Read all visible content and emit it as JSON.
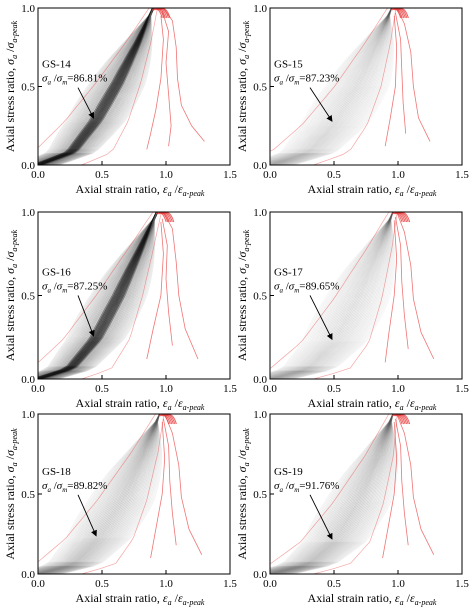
{
  "figure": {
    "xlabel_main": "Axial strain ratio, ",
    "xlabel_sym": "ε",
    "xlabel_sub1": "a",
    "xlabel_mid": " /",
    "xlabel_sym2": "ε",
    "xlabel_sub2": "a-peak",
    "ylabel_main": "Axial stress ratio, ",
    "ylabel_sym": "σ",
    "ylabel_sub1": "a",
    "ylabel_mid": " /",
    "ylabel_sym2": "σ",
    "ylabel_sub2": "a-peak",
    "ratio_sym1": "σ",
    "ratio_sub1": "a",
    "ratio_mid": " /",
    "ratio_sym2": "σ",
    "ratio_sub2": "m"
  },
  "colors": {
    "red_curves": "#e83a3a",
    "gray_band": "#5a5a5a",
    "dark_band": "#141414"
  },
  "chart_data": [
    {
      "type": "line",
      "panel": "GS-14",
      "label": "GS-14",
      "ratio_value": "=86.81%",
      "xlim": [
        0.0,
        1.5
      ],
      "ylim": [
        0.0,
        1.0
      ],
      "xticks": [
        "0.0",
        "0.5",
        "1.0",
        "1.5"
      ],
      "yticks": [
        "0.0",
        "0.5",
        "1.0"
      ],
      "band_center": [
        [
          0.0,
          0.0
        ],
        [
          0.26,
          0.08
        ],
        [
          0.45,
          0.28
        ],
        [
          0.62,
          0.52
        ],
        [
          0.78,
          0.78
        ],
        [
          0.9,
          1.0
        ]
      ],
      "band_intensity": "dark",
      "arrow_to": [
        0.45,
        0.28
      ],
      "post_peak_curves": [
        [
          [
            0.98,
            1.0
          ],
          [
            1.05,
            0.92
          ],
          [
            1.08,
            0.75
          ],
          [
            1.09,
            0.55
          ],
          [
            1.12,
            0.38
          ],
          [
            1.2,
            0.25
          ],
          [
            1.3,
            0.15
          ]
        ],
        [
          [
            0.97,
            0.98
          ],
          [
            1.02,
            0.85
          ],
          [
            1.0,
            0.65
          ],
          [
            1.02,
            0.45
          ],
          [
            1.04,
            0.25
          ],
          [
            1.02,
            0.12
          ]
        ],
        [
          [
            0.96,
            0.95
          ],
          [
            0.98,
            0.8
          ],
          [
            0.96,
            0.55
          ],
          [
            0.92,
            0.35
          ],
          [
            0.88,
            0.2
          ],
          [
            0.85,
            0.1
          ]
        ]
      ]
    },
    {
      "type": "line",
      "panel": "GS-15",
      "label": "GS-15",
      "ratio_value": "=87.23%",
      "xlim": [
        0.0,
        1.5
      ],
      "ylim": [
        0.0,
        1.0
      ],
      "xticks": [
        "0.0",
        "0.5",
        "1.0",
        "1.5"
      ],
      "yticks": [
        "0.0",
        "0.5",
        "1.0"
      ],
      "band_center": [
        [
          0.0,
          0.0
        ],
        [
          0.3,
          0.08
        ],
        [
          0.5,
          0.26
        ],
        [
          0.68,
          0.5
        ],
        [
          0.84,
          0.78
        ],
        [
          0.95,
          1.0
        ]
      ],
      "band_intensity": "light",
      "arrow_to": [
        0.5,
        0.26
      ],
      "post_peak_curves": [
        [
          [
            0.99,
            1.0
          ],
          [
            1.05,
            0.9
          ],
          [
            1.1,
            0.72
          ],
          [
            1.12,
            0.5
          ],
          [
            1.16,
            0.3
          ],
          [
            1.25,
            0.15
          ]
        ],
        [
          [
            0.98,
            0.97
          ],
          [
            1.02,
            0.8
          ],
          [
            1.03,
            0.6
          ],
          [
            1.04,
            0.4
          ],
          [
            1.06,
            0.2
          ]
        ],
        [
          [
            0.97,
            0.95
          ],
          [
            0.99,
            0.75
          ],
          [
            0.98,
            0.5
          ],
          [
            0.94,
            0.3
          ],
          [
            0.9,
            0.12
          ]
        ]
      ]
    },
    {
      "type": "line",
      "panel": "GS-16",
      "label": "GS-16",
      "ratio_value": "=87.25%",
      "xlim": [
        0.0,
        1.5
      ],
      "ylim": [
        0.0,
        1.0
      ],
      "xticks": [
        "0.0",
        "0.5",
        "1.0",
        "1.5"
      ],
      "yticks": [
        "0.0",
        "0.5",
        "1.0"
      ],
      "band_center": [
        [
          0.0,
          0.0
        ],
        [
          0.25,
          0.06
        ],
        [
          0.45,
          0.24
        ],
        [
          0.63,
          0.5
        ],
        [
          0.8,
          0.78
        ],
        [
          0.93,
          1.0
        ]
      ],
      "band_intensity": "dark",
      "arrow_to": [
        0.45,
        0.24
      ],
      "post_peak_curves": [
        [
          [
            0.98,
            1.0
          ],
          [
            1.05,
            0.9
          ],
          [
            1.08,
            0.7
          ],
          [
            1.1,
            0.5
          ],
          [
            1.15,
            0.3
          ],
          [
            1.25,
            0.12
          ]
        ],
        [
          [
            0.97,
            0.96
          ],
          [
            1.01,
            0.8
          ],
          [
            1.0,
            0.6
          ],
          [
            1.02,
            0.4
          ],
          [
            1.05,
            0.2
          ]
        ],
        [
          [
            0.96,
            0.94
          ],
          [
            0.98,
            0.75
          ],
          [
            0.96,
            0.5
          ],
          [
            0.9,
            0.3
          ],
          [
            0.85,
            0.12
          ]
        ]
      ]
    },
    {
      "type": "line",
      "panel": "GS-17",
      "label": "GS-17",
      "ratio_value": "=89.65%",
      "xlim": [
        0.0,
        1.5
      ],
      "ylim": [
        0.0,
        1.0
      ],
      "xticks": [
        "0.0",
        "0.5",
        "1.0",
        "1.5"
      ],
      "yticks": [
        "0.0",
        "0.5",
        "1.0"
      ],
      "band_center": [
        [
          0.0,
          0.0
        ],
        [
          0.3,
          0.06
        ],
        [
          0.5,
          0.22
        ],
        [
          0.68,
          0.48
        ],
        [
          0.85,
          0.78
        ],
        [
          0.96,
          1.0
        ]
      ],
      "band_intensity": "light",
      "arrow_to": [
        0.5,
        0.22
      ],
      "post_peak_curves": [
        [
          [
            0.99,
            1.0
          ],
          [
            1.05,
            0.88
          ],
          [
            1.1,
            0.68
          ],
          [
            1.12,
            0.48
          ],
          [
            1.18,
            0.28
          ],
          [
            1.28,
            0.12
          ]
        ],
        [
          [
            0.98,
            0.97
          ],
          [
            1.02,
            0.8
          ],
          [
            1.03,
            0.58
          ],
          [
            1.05,
            0.38
          ],
          [
            1.08,
            0.18
          ]
        ],
        [
          [
            0.97,
            0.95
          ],
          [
            0.99,
            0.72
          ],
          [
            0.97,
            0.5
          ],
          [
            0.93,
            0.28
          ],
          [
            0.9,
            0.1
          ]
        ]
      ]
    },
    {
      "type": "line",
      "panel": "GS-18",
      "label": "GS-18",
      "ratio_value": "=89.82%",
      "xlim": [
        0.0,
        1.5
      ],
      "ylim": [
        0.0,
        1.0
      ],
      "xticks": [
        "0.0",
        "0.5",
        "1.0",
        "1.5"
      ],
      "yticks": [
        "0.0",
        "0.5",
        "1.0"
      ],
      "band_center": [
        [
          0.0,
          0.0
        ],
        [
          0.28,
          0.06
        ],
        [
          0.47,
          0.22
        ],
        [
          0.65,
          0.46
        ],
        [
          0.83,
          0.76
        ],
        [
          0.95,
          1.0
        ]
      ],
      "band_intensity": "medium",
      "arrow_to": [
        0.47,
        0.22
      ],
      "post_peak_curves": [
        [
          [
            0.99,
            1.0
          ],
          [
            1.05,
            0.88
          ],
          [
            1.1,
            0.68
          ],
          [
            1.12,
            0.48
          ],
          [
            1.18,
            0.28
          ],
          [
            1.28,
            0.12
          ]
        ],
        [
          [
            0.98,
            0.97
          ],
          [
            1.02,
            0.8
          ],
          [
            1.03,
            0.58
          ],
          [
            1.05,
            0.38
          ],
          [
            1.08,
            0.18
          ]
        ],
        [
          [
            0.97,
            0.95
          ],
          [
            0.99,
            0.72
          ],
          [
            0.97,
            0.5
          ],
          [
            0.92,
            0.28
          ],
          [
            0.88,
            0.1
          ]
        ]
      ]
    },
    {
      "type": "line",
      "panel": "GS-19",
      "label": "GS-19",
      "ratio_value": "=91.76%",
      "xlim": [
        0.0,
        1.5
      ],
      "ylim": [
        0.0,
        1.0
      ],
      "xticks": [
        "0.0",
        "0.5",
        "1.0",
        "1.5"
      ],
      "yticks": [
        "0.0",
        "0.5",
        "1.0"
      ],
      "band_center": [
        [
          0.0,
          0.0
        ],
        [
          0.3,
          0.06
        ],
        [
          0.5,
          0.2
        ],
        [
          0.68,
          0.44
        ],
        [
          0.85,
          0.74
        ],
        [
          0.96,
          1.0
        ]
      ],
      "band_intensity": "medium",
      "arrow_to": [
        0.5,
        0.2
      ],
      "post_peak_curves": [
        [
          [
            0.99,
            1.0
          ],
          [
            1.05,
            0.88
          ],
          [
            1.1,
            0.68
          ],
          [
            1.12,
            0.48
          ],
          [
            1.18,
            0.28
          ],
          [
            1.28,
            0.12
          ]
        ],
        [
          [
            0.98,
            0.97
          ],
          [
            1.02,
            0.8
          ],
          [
            1.03,
            0.58
          ],
          [
            1.05,
            0.38
          ],
          [
            1.08,
            0.18
          ]
        ],
        [
          [
            0.97,
            0.95
          ],
          [
            0.99,
            0.72
          ],
          [
            0.97,
            0.5
          ],
          [
            0.92,
            0.28
          ],
          [
            0.88,
            0.1
          ]
        ]
      ]
    }
  ]
}
